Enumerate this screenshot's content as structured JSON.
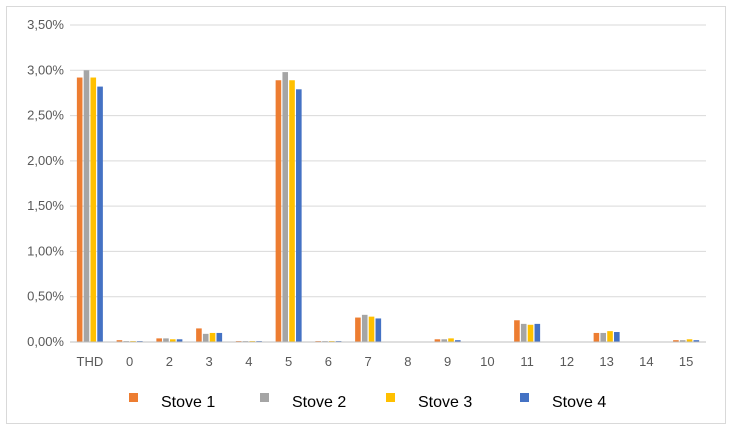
{
  "chart_data": {
    "type": "bar",
    "title": "",
    "xlabel": "",
    "ylabel": "",
    "categories": [
      "THD",
      "0",
      "2",
      "3",
      "4",
      "5",
      "6",
      "7",
      "8",
      "9",
      "10",
      "11",
      "12",
      "13",
      "14",
      "15"
    ],
    "ylim": [
      0,
      3.5
    ],
    "y_ticks": [
      "0,00%",
      "0,50%",
      "1,00%",
      "1,50%",
      "2,00%",
      "2,50%",
      "3,00%",
      "3,50%"
    ],
    "grid": true,
    "legend_position": "bottom",
    "series": [
      {
        "name": "Stove 1",
        "color": "#ED7D31",
        "values": [
          2.92,
          0.02,
          0.04,
          0.15,
          0.01,
          2.89,
          0.01,
          0.27,
          0.0,
          0.03,
          0.0,
          0.24,
          0.0,
          0.1,
          0.0,
          0.02
        ]
      },
      {
        "name": "Stove 2",
        "color": "#A5A5A5",
        "values": [
          3.0,
          0.01,
          0.04,
          0.09,
          0.01,
          2.98,
          0.01,
          0.3,
          0.0,
          0.03,
          0.0,
          0.2,
          0.0,
          0.1,
          0.0,
          0.02
        ]
      },
      {
        "name": "Stove 3",
        "color": "#FFC000",
        "values": [
          2.92,
          0.01,
          0.03,
          0.1,
          0.01,
          2.89,
          0.01,
          0.28,
          0.0,
          0.04,
          0.0,
          0.19,
          0.0,
          0.12,
          0.0,
          0.03
        ]
      },
      {
        "name": "Stove 4",
        "color": "#4472C4",
        "values": [
          2.82,
          0.01,
          0.03,
          0.1,
          0.01,
          2.79,
          0.01,
          0.26,
          0.0,
          0.02,
          0.0,
          0.2,
          0.0,
          0.11,
          0.0,
          0.02
        ]
      }
    ]
  }
}
